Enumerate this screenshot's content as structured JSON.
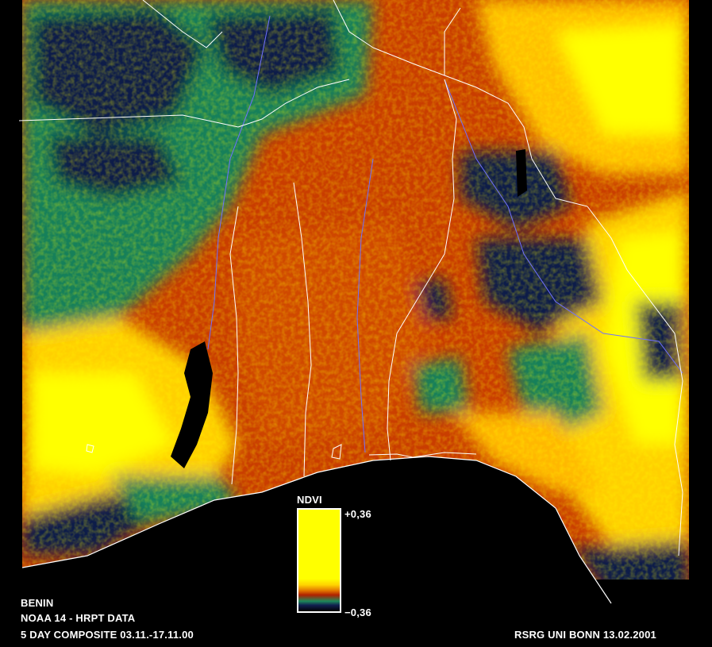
{
  "legend": {
    "title": "NDVI",
    "max_label": "+0,36",
    "min_label": "−0,36",
    "stops": [
      "#ffff00",
      "#ffff00",
      "#ffd400",
      "#e07000",
      "#b02000",
      "#1e8a5a",
      "#112050",
      "#000000"
    ]
  },
  "caption": {
    "line1": "BENIN",
    "line2": "NOAA 14  - HRPT DATA",
    "line3": "5 DAY COMPOSITE 03.11.-17.11.00",
    "credit": "RSRG UNI BONN 13.02.2001"
  },
  "palette": {
    "ocean": "#000000",
    "lake": "#000000",
    "border": "#ffffff",
    "river": "#7070ff",
    "high_ndvi": "#ffff00",
    "mid_high_ndvi": "#ffbf00",
    "mid_ndvi": "#d84a00",
    "low_mid_ndvi": "#b22a00",
    "low_ndvi": "#15805a",
    "very_low_ndvi": "#0f1a4a"
  }
}
